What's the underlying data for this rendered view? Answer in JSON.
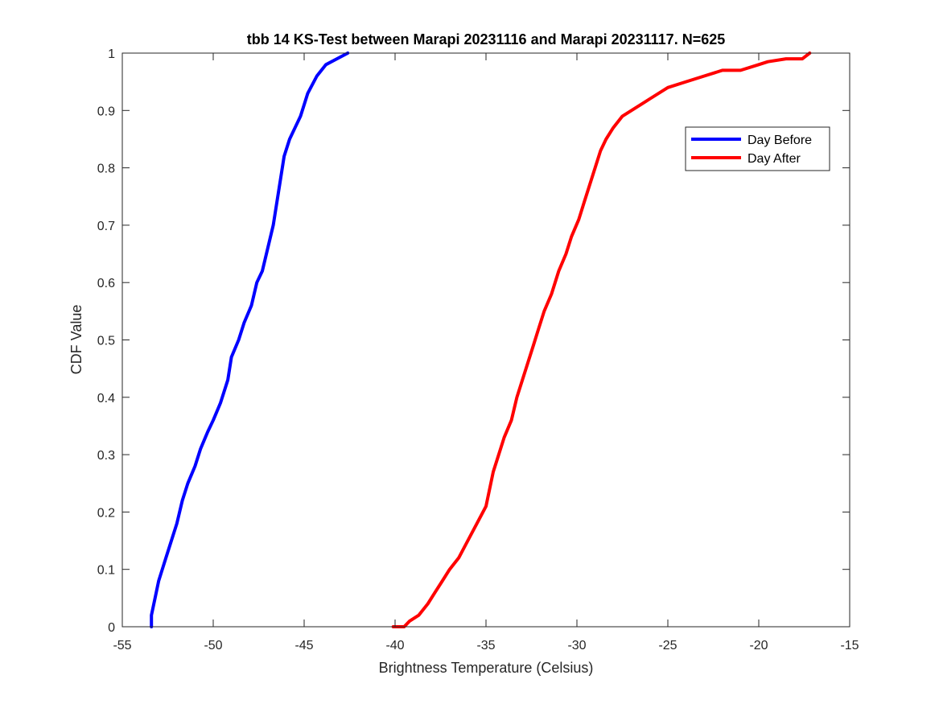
{
  "chart_data": {
    "type": "line",
    "title": "tbb 14 KS-Test between Marapi 20231116 and Marapi 20231117. N=625",
    "xlabel": "Brightness Temperature (Celsius)",
    "ylabel": "CDF Value",
    "xlim": [
      -55,
      -15
    ],
    "ylim": [
      0,
      1
    ],
    "xticks": [
      -55,
      -50,
      -45,
      -40,
      -35,
      -30,
      -25,
      -20,
      -15
    ],
    "yticks": [
      0,
      0.1,
      0.2,
      0.3,
      0.4,
      0.5,
      0.6,
      0.7,
      0.8,
      0.9,
      1
    ],
    "xtick_labels": [
      "-55",
      "-50",
      "-45",
      "-40",
      "-35",
      "-30",
      "-25",
      "-20",
      "-15"
    ],
    "ytick_labels": [
      "0",
      "0.1",
      "0.2",
      "0.3",
      "0.4",
      "0.5",
      "0.6",
      "0.7",
      "0.8",
      "0.9",
      "1"
    ],
    "grid": false,
    "legend_position": "top-right",
    "series": [
      {
        "name": "Day Before",
        "color": "#0000ff",
        "x": [
          -53.4,
          -53.4,
          -53.2,
          -53.0,
          -52.8,
          -52.6,
          -52.3,
          -52.0,
          -51.7,
          -51.4,
          -51.0,
          -50.7,
          -50.3,
          -50.0,
          -49.6,
          -49.2,
          -49.0,
          -48.6,
          -48.3,
          -47.9,
          -47.6,
          -47.3,
          -47.0,
          -46.7,
          -46.5,
          -46.3,
          -46.1,
          -45.8,
          -45.5,
          -45.2,
          -44.8,
          -44.3,
          -43.8,
          -43.2,
          -42.6
        ],
        "y": [
          0.0,
          0.02,
          0.05,
          0.08,
          0.1,
          0.12,
          0.15,
          0.18,
          0.22,
          0.25,
          0.28,
          0.31,
          0.34,
          0.36,
          0.39,
          0.43,
          0.47,
          0.5,
          0.53,
          0.56,
          0.6,
          0.62,
          0.66,
          0.7,
          0.74,
          0.78,
          0.82,
          0.85,
          0.87,
          0.89,
          0.93,
          0.96,
          0.98,
          0.99,
          1.0
        ]
      },
      {
        "name": "Day After",
        "color": "#ff0000",
        "x": [
          -40.1,
          -39.5,
          -39.2,
          -38.7,
          -38.2,
          -37.8,
          -37.4,
          -37.0,
          -36.5,
          -36.0,
          -35.5,
          -35.0,
          -34.8,
          -34.6,
          -34.3,
          -34.0,
          -33.6,
          -33.3,
          -33.0,
          -32.7,
          -32.4,
          -32.1,
          -31.8,
          -31.4,
          -31.0,
          -30.6,
          -30.3,
          -29.9,
          -29.6,
          -29.3,
          -29.0,
          -28.7,
          -28.4,
          -28.0,
          -27.5,
          -27.0,
          -26.5,
          -26.0,
          -25.0,
          -24.0,
          -23.0,
          -22.0,
          -21.0,
          -20.0,
          -19.5,
          -18.5,
          -17.6,
          -17.2
        ],
        "y": [
          0.0,
          0.0,
          0.01,
          0.02,
          0.04,
          0.06,
          0.08,
          0.1,
          0.12,
          0.15,
          0.18,
          0.21,
          0.24,
          0.27,
          0.3,
          0.33,
          0.36,
          0.4,
          0.43,
          0.46,
          0.49,
          0.52,
          0.55,
          0.58,
          0.62,
          0.65,
          0.68,
          0.71,
          0.74,
          0.77,
          0.8,
          0.83,
          0.85,
          0.87,
          0.89,
          0.9,
          0.91,
          0.92,
          0.94,
          0.95,
          0.96,
          0.97,
          0.97,
          0.98,
          0.985,
          0.99,
          0.99,
          1.0
        ]
      }
    ]
  }
}
